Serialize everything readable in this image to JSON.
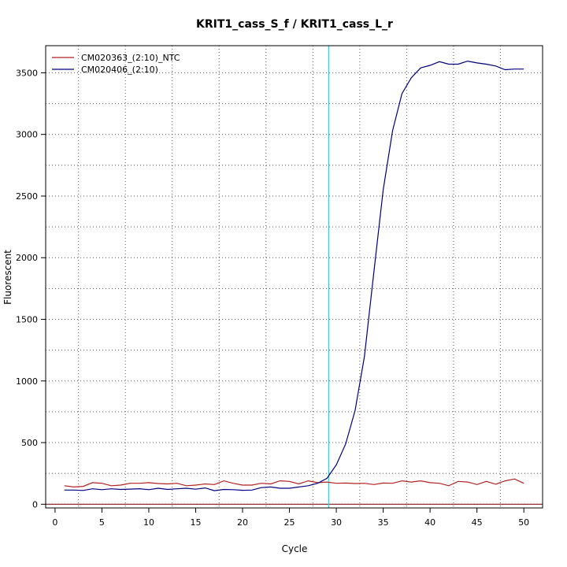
{
  "chart_data": {
    "type": "line",
    "title": "KRIT1_cass_S_f / KRIT1_cass_L_r",
    "xlabel": "Cycle",
    "ylabel": "Fluorescent",
    "xlim": [
      -1,
      52
    ],
    "ylim": [
      -30,
      3720
    ],
    "x_ticks": [
      0,
      5,
      10,
      15,
      20,
      25,
      30,
      35,
      40,
      45,
      50
    ],
    "y_ticks": [
      0,
      500,
      1000,
      1500,
      2000,
      2500,
      3000,
      3500
    ],
    "grid": true,
    "legend_position": "top-left",
    "threshold": {
      "color": "#00e5ee",
      "x": 29.2
    },
    "baseline": {
      "color": "#8b1a1a",
      "y": 0
    },
    "x": [
      1,
      2,
      3,
      4,
      5,
      6,
      7,
      8,
      9,
      10,
      11,
      12,
      13,
      14,
      15,
      16,
      17,
      18,
      19,
      20,
      21,
      22,
      23,
      24,
      25,
      26,
      27,
      28,
      29,
      30,
      31,
      32,
      33,
      34,
      35,
      36,
      37,
      38,
      39,
      40,
      41,
      42,
      43,
      44,
      45,
      46,
      47,
      48,
      49,
      50
    ],
    "series": [
      {
        "name": "CM020363_(2:10)_NTC",
        "color": "#b22222",
        "values": [
          150,
          140,
          145,
          175,
          170,
          150,
          155,
          170,
          170,
          175,
          168,
          165,
          170,
          150,
          155,
          165,
          160,
          190,
          170,
          155,
          155,
          170,
          165,
          190,
          185,
          165,
          190,
          175,
          180,
          170,
          172,
          168,
          170,
          160,
          172,
          170,
          190,
          180,
          190,
          175,
          170,
          150,
          185,
          180,
          160,
          185,
          162,
          190,
          205,
          170
        ]
      },
      {
        "name": "CM020406_(2:10)",
        "color": "#000080",
        "values": [
          115,
          115,
          112,
          125,
          118,
          125,
          120,
          123,
          126,
          118,
          130,
          120,
          125,
          130,
          122,
          132,
          110,
          120,
          118,
          113,
          115,
          135,
          140,
          130,
          130,
          140,
          150,
          170,
          210,
          320,
          490,
          760,
          1200,
          1880,
          2550,
          3030,
          3330,
          3460,
          3540,
          3560,
          3590,
          3570,
          3570,
          3595,
          3580,
          3570,
          3555,
          3525,
          3530,
          3530
        ]
      }
    ]
  }
}
